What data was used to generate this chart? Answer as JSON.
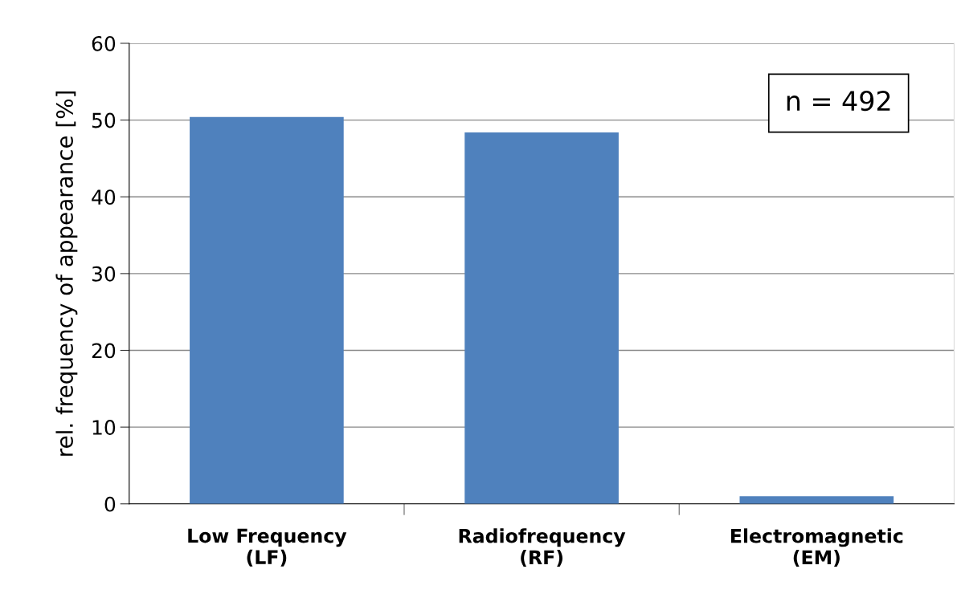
{
  "chart_data": {
    "type": "bar",
    "ylabel": "rel. frequency of appearance [%]",
    "categories": [
      "Low Frequency\n(LF)",
      "Radiofrequency\n(RF)",
      "Electromagnetic\n(EM)"
    ],
    "values": [
      50.4,
      48.4,
      1.0
    ],
    "color": "#4f81bd",
    "ylim": [
      0,
      60
    ],
    "yticks": [
      0,
      10,
      20,
      30,
      40,
      50,
      60
    ],
    "grid": "y",
    "annotations": [
      "n = 492"
    ]
  }
}
